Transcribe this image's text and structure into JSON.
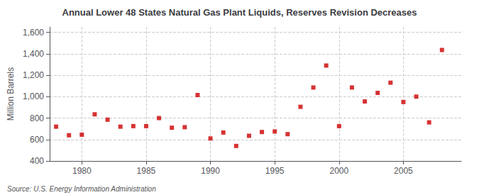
{
  "chart_data": {
    "type": "scatter",
    "title": "Annual Lower 48 States Natural Gas Plant Liquids, Reserves Revision Decreases",
    "ylabel": "Million Barrels",
    "annotation": "Source: U.S. Energy Information Administration",
    "x": [
      1978,
      1979,
      1980,
      1981,
      1982,
      1983,
      1984,
      1985,
      1986,
      1987,
      1988,
      1989,
      1990,
      1991,
      1992,
      1993,
      1994,
      1995,
      1996,
      1997,
      1998,
      1999,
      2000,
      2001,
      2002,
      2003,
      2004,
      2005,
      2006,
      2007,
      2008
    ],
    "values": [
      720,
      640,
      645,
      835,
      785,
      720,
      725,
      725,
      800,
      710,
      715,
      1015,
      610,
      665,
      540,
      635,
      670,
      675,
      650,
      905,
      1085,
      1290,
      725,
      1085,
      955,
      1035,
      1130,
      950,
      1000,
      760,
      1435
    ],
    "color": "#cc0000",
    "marker": "square",
    "xlim": [
      1977.5,
      2009.5
    ],
    "xticks": [
      1980,
      1985,
      1990,
      1995,
      2000,
      2005
    ],
    "ylim": [
      400,
      1650
    ],
    "yticks": [
      400,
      600,
      800,
      {
        "value": 1000,
        "label": "1,000"
      },
      {
        "value": 1200,
        "label": "1,200"
      },
      {
        "value": 1400,
        "label": "1,400"
      },
      {
        "value": 1600,
        "label": "1,600"
      }
    ],
    "grid": true
  }
}
